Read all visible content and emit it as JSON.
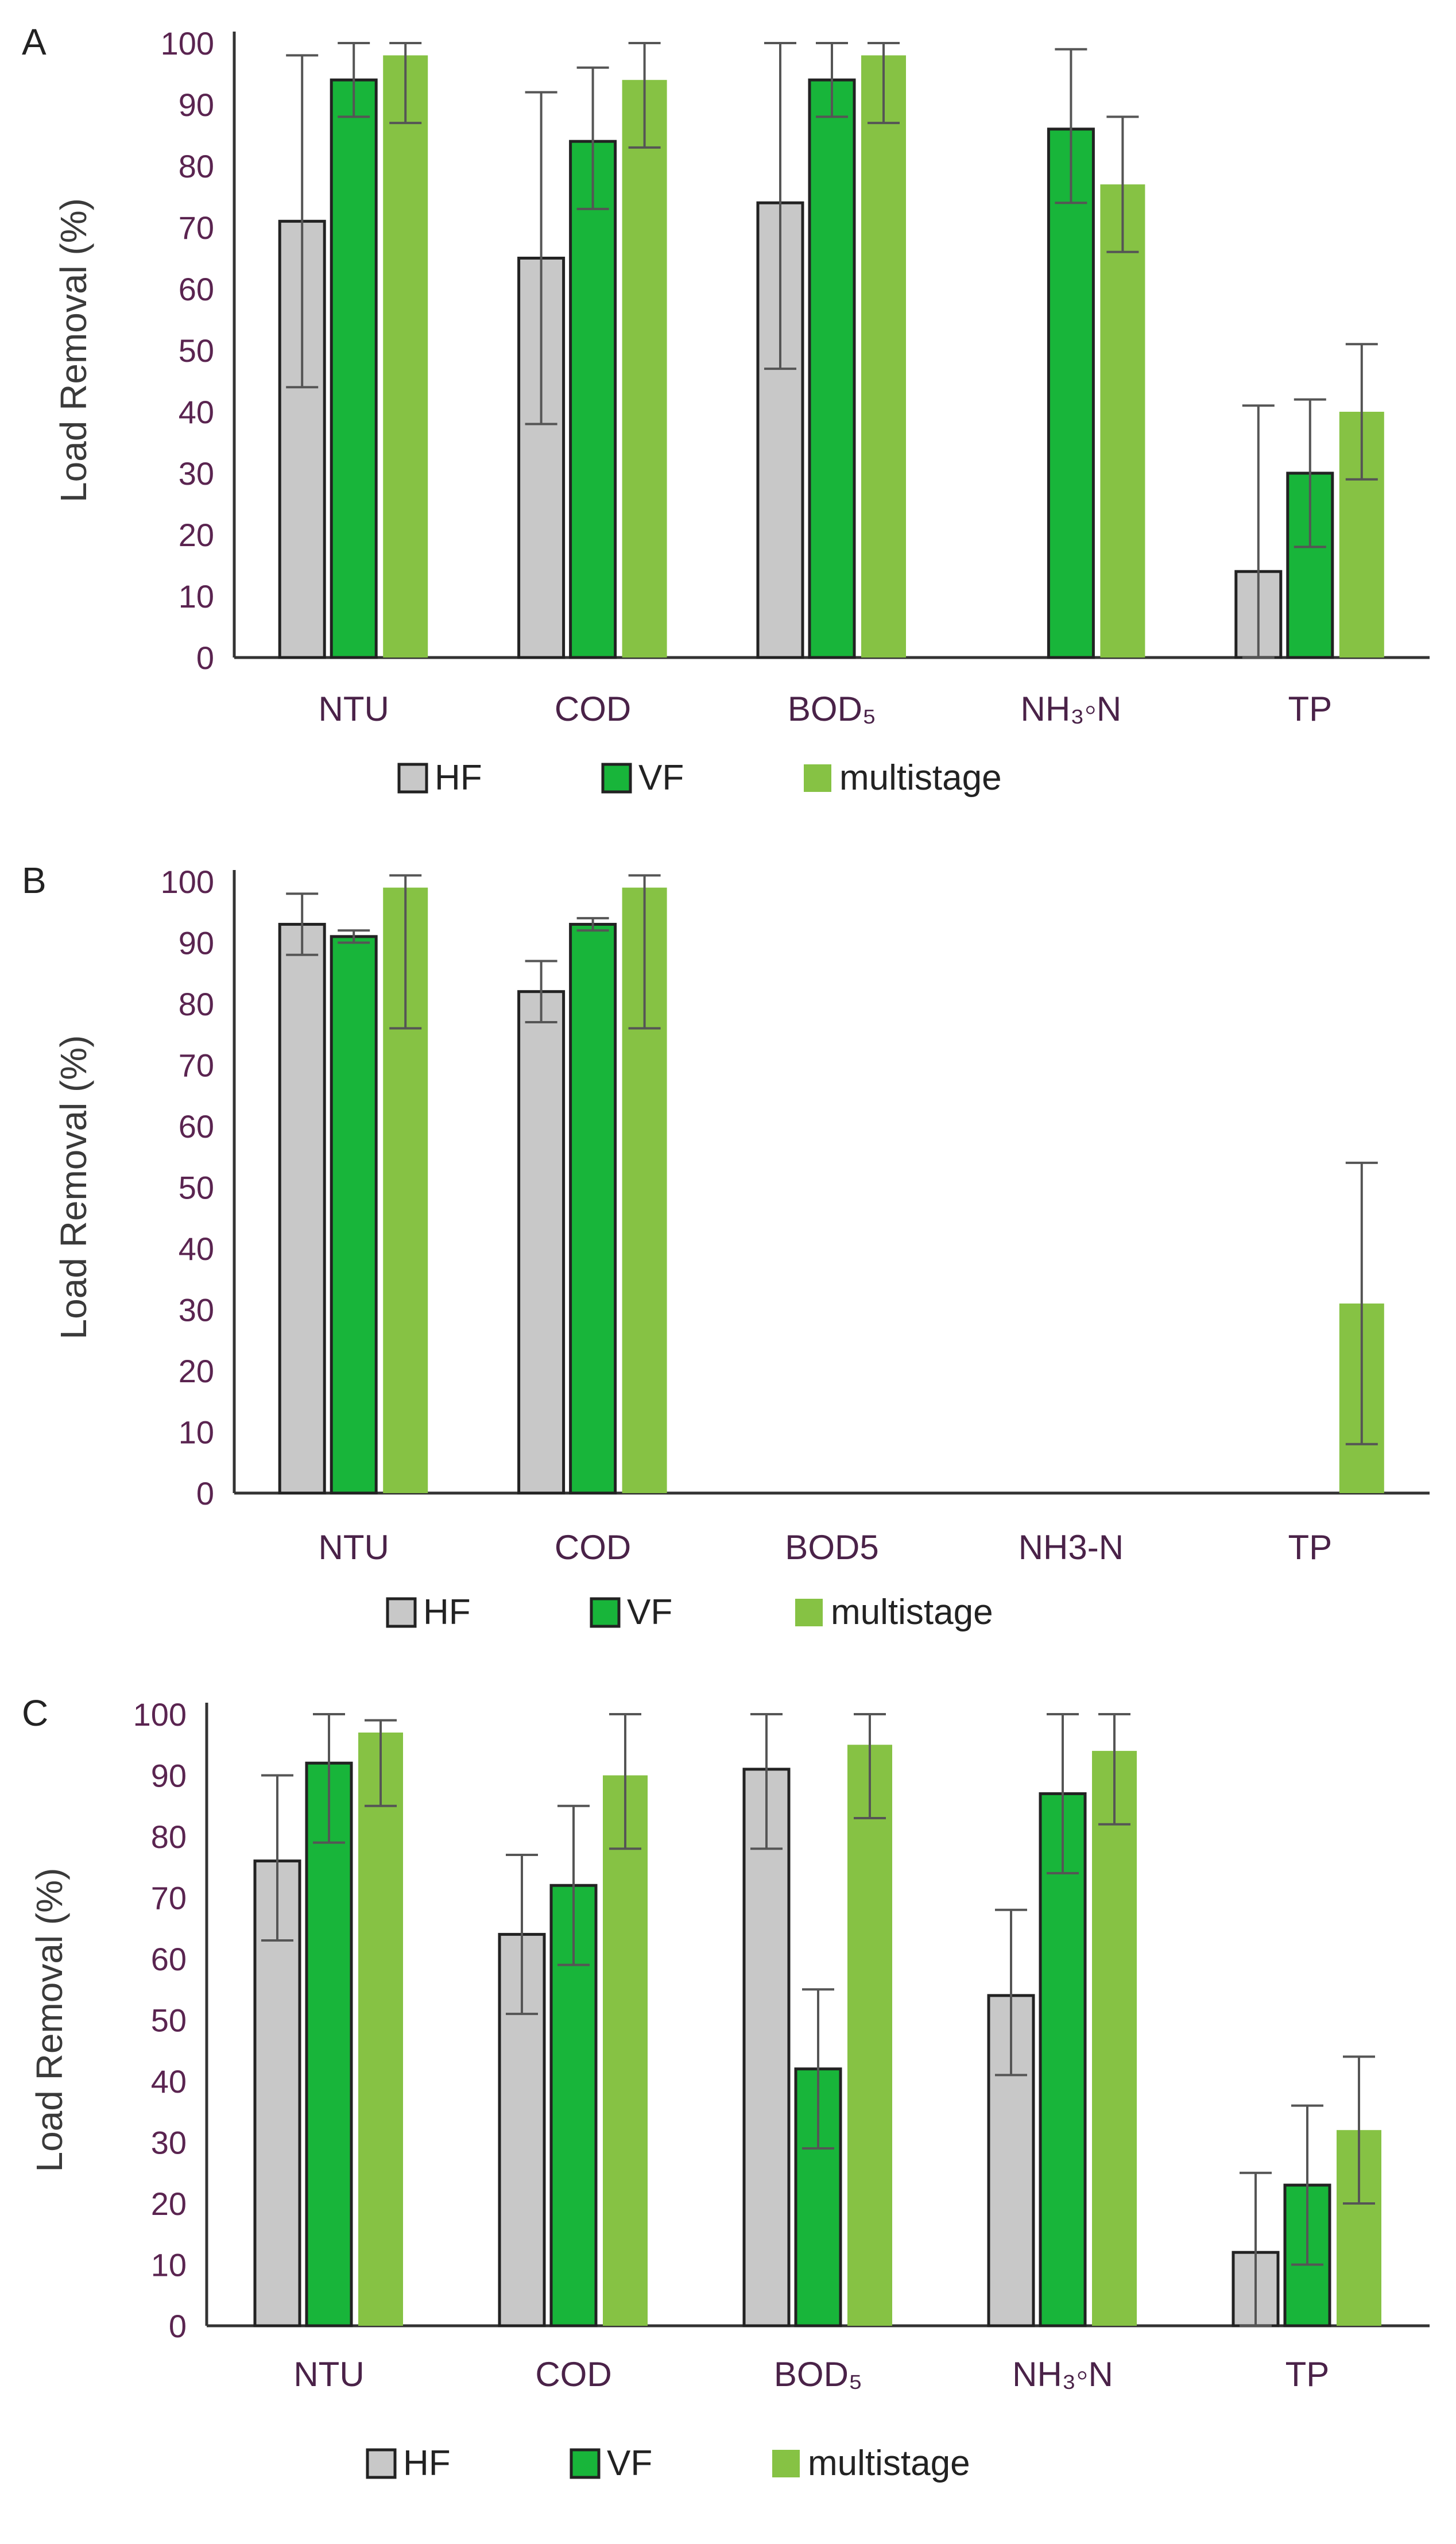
{
  "colors": {
    "HF": "#c8c8c8",
    "VF": "#18b53a",
    "multistage": "#86c244",
    "axis": "#333333",
    "error_bar": "#555555"
  },
  "legend_labels": [
    "HF",
    "VF",
    "multistage"
  ],
  "chart_data": [
    {
      "panel": "A",
      "type": "bar",
      "categories": [
        "NTU",
        "COD",
        "BOD₅",
        "NH₃-N",
        "TP"
      ],
      "category_labels": [
        "NTU",
        "COD",
        "BOD₅",
        "NH₃◦N",
        "TP"
      ],
      "ylabel": "Load Removal (%)",
      "ylim": [
        0,
        100
      ],
      "yticks": [
        "0",
        "10",
        "20",
        "30",
        "40",
        "50",
        "60",
        "70",
        "80",
        "90",
        "100"
      ],
      "series": [
        {
          "name": "HF",
          "values": [
            71,
            65,
            74,
            null,
            14
          ],
          "err_low": [
            27,
            27,
            27,
            null,
            14
          ],
          "err_high": [
            27,
            27,
            26,
            null,
            27
          ]
        },
        {
          "name": "VF",
          "values": [
            94,
            84,
            94,
            86,
            30
          ],
          "err_low": [
            6,
            11,
            6,
            12,
            12
          ],
          "err_high": [
            6,
            12,
            6,
            13,
            12
          ]
        },
        {
          "name": "multistage",
          "values": [
            98,
            94,
            98,
            77,
            40
          ],
          "err_low": [
            11,
            11,
            11,
            11,
            11
          ],
          "err_high": [
            2,
            6,
            2,
            11,
            11
          ]
        }
      ]
    },
    {
      "panel": "B",
      "type": "bar",
      "categories": [
        "NTU",
        "COD",
        "BOD5",
        "NH3-N",
        "TP"
      ],
      "category_labels": [
        "NTU",
        "COD",
        "BOD5",
        "NH3-N",
        "TP"
      ],
      "ylabel": "Load Removal (%)",
      "ylim": [
        0,
        100
      ],
      "yticks": [
        "0",
        "10",
        "20",
        "30",
        "40",
        "50",
        "60",
        "70",
        "80",
        "90",
        "100"
      ],
      "series": [
        {
          "name": "HF",
          "values": [
            93,
            82,
            null,
            null,
            null
          ],
          "err_low": [
            5,
            5,
            null,
            null,
            null
          ],
          "err_high": [
            5,
            5,
            null,
            null,
            null
          ]
        },
        {
          "name": "VF",
          "values": [
            91,
            93,
            null,
            null,
            null
          ],
          "err_low": [
            1,
            1,
            null,
            null,
            null
          ],
          "err_high": [
            1,
            1,
            null,
            null,
            null
          ]
        },
        {
          "name": "multistage",
          "values": [
            99,
            99,
            null,
            null,
            31
          ],
          "err_low": [
            23,
            23,
            null,
            null,
            23
          ],
          "err_high": [
            2,
            2,
            null,
            null,
            23
          ]
        }
      ]
    },
    {
      "panel": "C",
      "type": "bar",
      "categories": [
        "NTU",
        "COD",
        "BOD₅",
        "NH₃-N",
        "TP"
      ],
      "category_labels": [
        "NTU",
        "COD",
        "BOD₅",
        "NH₃◦N",
        "TP"
      ],
      "ylabel": "Load Removal (%)",
      "ylim": [
        0,
        100
      ],
      "yticks": [
        "0",
        "10",
        "20",
        "30",
        "40",
        "50",
        "60",
        "70",
        "80",
        "90",
        "100"
      ],
      "series": [
        {
          "name": "HF",
          "values": [
            76,
            64,
            91,
            54,
            12
          ],
          "err_low": [
            13,
            13,
            13,
            13,
            12
          ],
          "err_high": [
            14,
            13,
            9,
            14,
            13
          ]
        },
        {
          "name": "VF",
          "values": [
            92,
            72,
            42,
            87,
            23
          ],
          "err_low": [
            13,
            13,
            13,
            13,
            13
          ],
          "err_high": [
            8,
            13,
            13,
            13,
            13
          ]
        },
        {
          "name": "multistage",
          "values": [
            97,
            90,
            95,
            94,
            32
          ],
          "err_low": [
            12,
            12,
            12,
            12,
            12
          ],
          "err_high": [
            2,
            10,
            5,
            6,
            12
          ]
        }
      ]
    }
  ]
}
